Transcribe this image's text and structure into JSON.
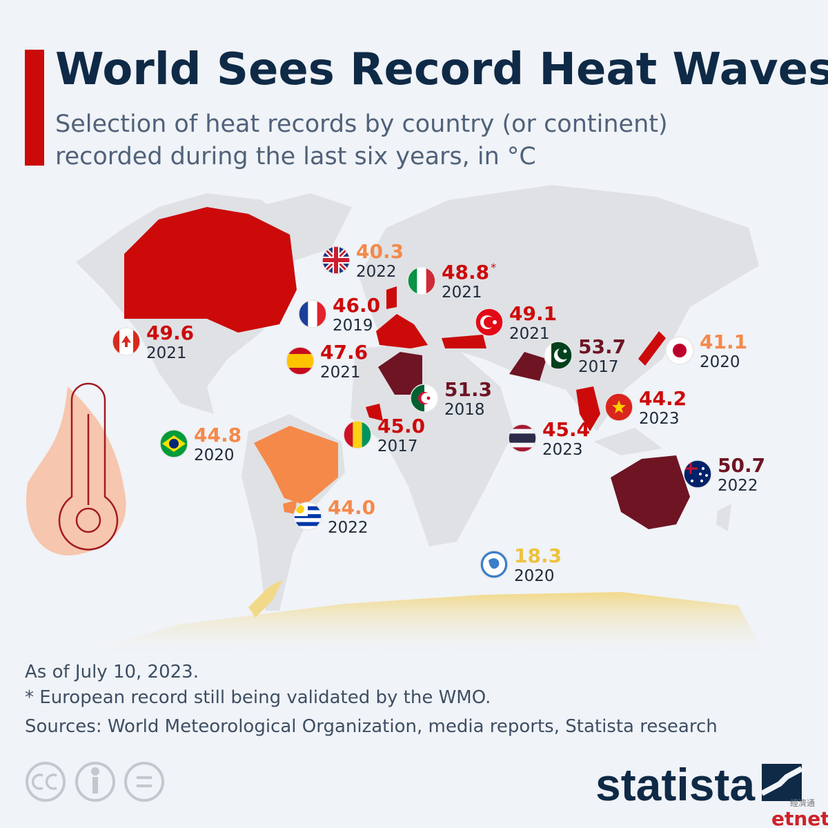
{
  "header": {
    "title": "World Sees Record Heat Waves",
    "subtitle_lines": [
      "Selection of heat records by country (or continent)",
      "recorded during the last six years, in °C"
    ]
  },
  "records": [
    {
      "value": "40.3",
      "year": "2022",
      "color": "#f5894a"
    },
    {
      "value": "48.8",
      "note_mark": "*",
      "year": "2021",
      "color": "#cc0a0a"
    },
    {
      "value": "46.0",
      "year": "2019",
      "color": "#cc0a0a"
    },
    {
      "value": "49.1",
      "year": "2021",
      "color": "#cc0a0a"
    },
    {
      "value": "49.6",
      "year": "2021",
      "color": "#cc0a0a"
    },
    {
      "value": "47.6",
      "year": "2021",
      "color": "#cc0a0a"
    },
    {
      "value": "53.7",
      "year": "2017",
      "color": "#6e1423"
    },
    {
      "value": "41.1",
      "year": "2020",
      "color": "#f5894a"
    },
    {
      "value": "51.3",
      "year": "2018",
      "color": "#6e1423"
    },
    {
      "value": "44.2",
      "year": "2023",
      "color": "#cc0a0a"
    },
    {
      "value": "45.0",
      "year": "2017",
      "color": "#cc0a0a"
    },
    {
      "value": "45.4",
      "year": "2023",
      "color": "#cc0a0a"
    },
    {
      "value": "44.8",
      "year": "2020",
      "color": "#f5894a"
    },
    {
      "value": "44.0",
      "year": "2022",
      "color": "#f5894a"
    },
    {
      "value": "50.7",
      "year": "2022",
      "color": "#6e1423"
    },
    {
      "value": "18.3",
      "year": "2020",
      "color": "#eec23e"
    }
  ],
  "footer": {
    "notes": [
      "As of July 10, 2023.",
      "* European record still being validated by the WMO.",
      "Sources: World Meteorological Organization, media reports, Statista research"
    ],
    "brand": "statista",
    "watermark": [
      "經濟通",
      "etnet"
    ]
  }
}
